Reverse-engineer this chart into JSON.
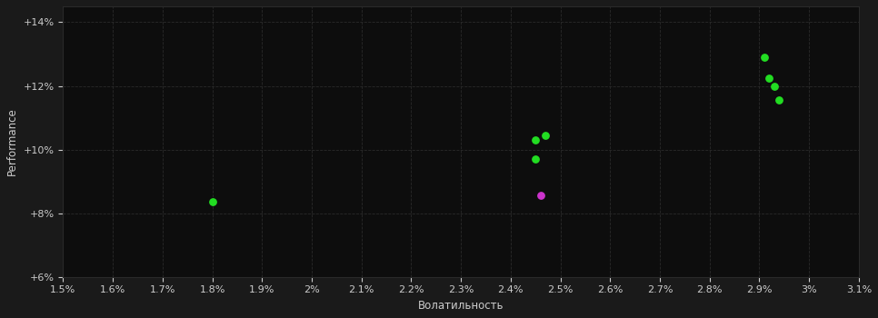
{
  "background_color": "#1a1a1a",
  "plot_bg_color": "#0d0d0d",
  "grid_color": "#2a2a2a",
  "text_color": "#cccccc",
  "xlabel": "Волатильность",
  "ylabel": "Performance",
  "xlim": [
    0.015,
    0.031
  ],
  "ylim": [
    0.06,
    0.145
  ],
  "xticks": [
    0.015,
    0.016,
    0.017,
    0.018,
    0.019,
    0.02,
    0.021,
    0.022,
    0.023,
    0.024,
    0.025,
    0.026,
    0.027,
    0.028,
    0.029,
    0.03,
    0.031
  ],
  "yticks": [
    0.06,
    0.08,
    0.1,
    0.12,
    0.14
  ],
  "ytick_labels": [
    "+6%",
    "+8%",
    "+10%",
    "+12%",
    "+14%"
  ],
  "points_green": [
    [
      0.018,
      0.0835
    ],
    [
      0.0245,
      0.103
    ],
    [
      0.0247,
      0.1045
    ],
    [
      0.0245,
      0.097
    ],
    [
      0.0291,
      0.129
    ],
    [
      0.0292,
      0.1225
    ],
    [
      0.0293,
      0.12
    ],
    [
      0.0294,
      0.1155
    ]
  ],
  "points_magenta": [
    [
      0.0246,
      0.0855
    ]
  ],
  "green_color": "#22dd22",
  "magenta_color": "#cc33cc",
  "marker_size": 28,
  "font_size_axis_label": 8.5,
  "font_size_tick": 8
}
